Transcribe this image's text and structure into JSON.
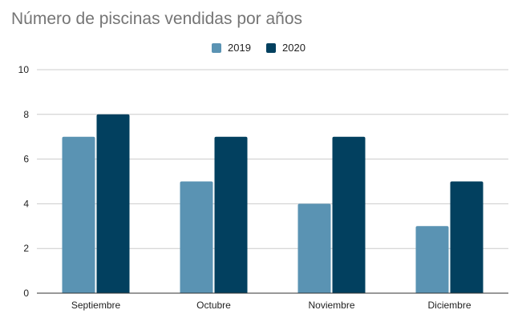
{
  "chart_data": {
    "type": "bar",
    "title": "Número de piscinas vendidas por años",
    "categories": [
      "Septiembre",
      "Octubre",
      "Noviembre",
      "Diciembre"
    ],
    "series": [
      {
        "name": "2019",
        "color": "#5a93b3",
        "values": [
          7,
          5,
          4,
          3
        ]
      },
      {
        "name": "2020",
        "color": "#02405f",
        "values": [
          8,
          7,
          7,
          5
        ]
      }
    ],
    "yticks": [
      "0",
      "2",
      "4",
      "6",
      "8",
      "10"
    ],
    "ylim": [
      0,
      10
    ],
    "xlabel": "",
    "ylabel": "",
    "grid": true,
    "legend_position": "top"
  }
}
